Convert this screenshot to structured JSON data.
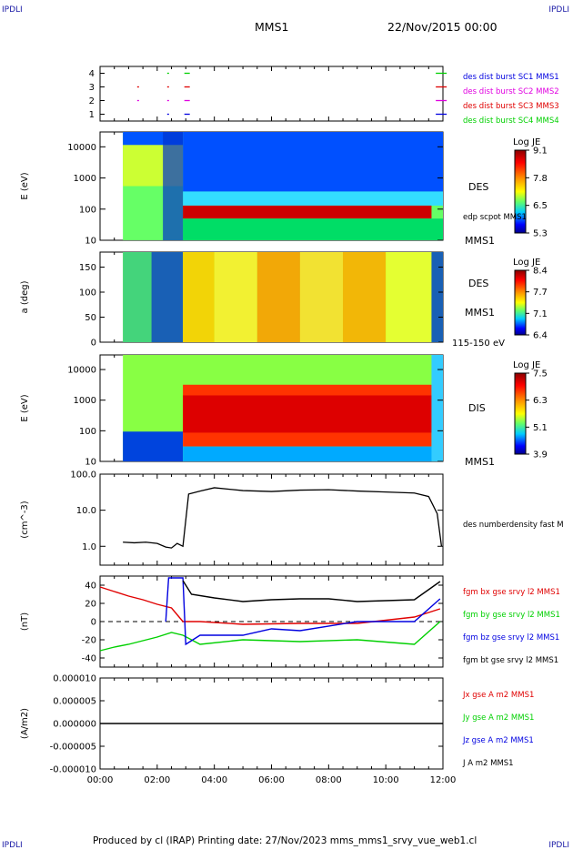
{
  "header": {
    "corner_left": "IPDLI",
    "corner_right": "IPDLI",
    "mission": "MMS1",
    "date": "22/Nov/2015 00:00",
    "corner_bottom_left": "IPDLI",
    "corner_bottom_right": "IPDLI"
  },
  "footer": {
    "text": "Produced by cl (IRAP)   Printing date: 27/Nov/2023   mms_mms1_srvy_vue_web1.cl"
  },
  "x_axis": {
    "ticks": [
      "00:00",
      "02:00",
      "04:00",
      "06:00",
      "08:00",
      "10:00",
      "12:00"
    ],
    "range_hours": [
      0,
      12
    ]
  },
  "colors": {
    "red": "#e00000",
    "green": "#00d000",
    "blue": "#0000e0",
    "magenta": "#e000e0",
    "black": "#000000"
  },
  "chart_data": [
    {
      "type": "scatter",
      "panel": "burst",
      "yticks": [
        "1",
        "2",
        "3",
        "4"
      ],
      "legend": [
        {
          "label": "des dist burst SC1 MMS1",
          "color": "#0000e0"
        },
        {
          "label": "des dist burst SC2 MMS2",
          "color": "#e000e0"
        },
        {
          "label": "des dist burst SC3 MMS3",
          "color": "#e00000"
        },
        {
          "label": "des dist burst SC4 MMS4",
          "color": "#00d000"
        }
      ],
      "series": [
        {
          "level": 1,
          "x": [
            2.35,
            2.95,
            11.75
          ]
        },
        {
          "level": 2,
          "x": [
            1.3,
            2.35,
            2.95,
            11.75
          ]
        },
        {
          "level": 3,
          "x": [
            1.3,
            2.35,
            2.95,
            11.75
          ]
        },
        {
          "level": 4,
          "x": [
            2.35,
            2.95,
            11.75
          ]
        }
      ]
    },
    {
      "type": "heatmap",
      "panel": "des-energy",
      "ylabel": "E (eV)",
      "yticks": [
        "10",
        "100",
        "1000",
        "10000"
      ],
      "colorbar": {
        "title": "Log JE",
        "ticks": [
          "9.1",
          "7.8",
          "6.5",
          "5.3"
        ]
      },
      "labels": [
        "DES",
        "MMS1"
      ],
      "overlay_label": "edp scpot MMS1"
    },
    {
      "type": "heatmap",
      "panel": "des-pitch",
      "ylabel": "a (deg)",
      "yticks": [
        "0",
        "50",
        "100",
        "150"
      ],
      "colorbar": {
        "title": "Log JE",
        "ticks": [
          "8.4",
          "7.7",
          "7.1",
          "6.4"
        ]
      },
      "labels": [
        "DES",
        "MMS1",
        "115-150 eV"
      ]
    },
    {
      "type": "heatmap",
      "panel": "dis-energy",
      "ylabel": "E (eV)",
      "yticks": [
        "10",
        "100",
        "1000",
        "10000"
      ],
      "colorbar": {
        "title": "Log JE",
        "ticks": [
          "7.5",
          "6.3",
          "5.1",
          "3.9"
        ]
      },
      "labels": [
        "DIS",
        "MMS1"
      ]
    },
    {
      "type": "line",
      "panel": "density",
      "ylabel": "(cm^-3)",
      "yticks": [
        "1.0",
        "10.0",
        "100.0"
      ],
      "ylim": [
        0.3,
        100
      ],
      "legend": [
        {
          "label": "des numberdensity fast M",
          "color": "#000000"
        }
      ],
      "series": [
        {
          "name": "des numberdensity fast M",
          "x": [
            0.8,
            1.2,
            1.6,
            2.0,
            2.3,
            2.5,
            2.7,
            2.9,
            3.1,
            3.5,
            4.0,
            5.0,
            6.0,
            7.0,
            8.0,
            9.0,
            10.0,
            11.0,
            11.5,
            11.8,
            11.95
          ],
          "y": [
            1.3,
            1.25,
            1.3,
            1.2,
            0.95,
            0.9,
            1.2,
            1.0,
            28,
            34,
            42,
            35,
            33,
            36,
            37,
            34,
            32,
            30,
            24,
            8,
            1.0
          ]
        }
      ]
    },
    {
      "type": "line",
      "panel": "magnetic",
      "ylabel": "(nT)",
      "yticks": [
        "-40",
        "-20",
        "0",
        "20",
        "40"
      ],
      "ylim": [
        -50,
        50
      ],
      "legend": [
        {
          "label": "fgm bx gse srvy l2 MMS1",
          "color": "#e00000"
        },
        {
          "label": "fgm by gse srvy l2 MMS1",
          "color": "#00d000"
        },
        {
          "label": "fgm bz gse srvy l2 MMS1",
          "color": "#0000e0"
        },
        {
          "label": "fgm bt gse srvy l2 MMS1",
          "color": "#000000"
        }
      ],
      "series": [
        {
          "name": "fgm bx gse srvy l2 MMS1",
          "x": [
            0.0,
            0.5,
            1.0,
            1.5,
            2.0,
            2.5,
            2.9,
            3.5,
            5.0,
            7.0,
            9.0,
            11.0,
            11.9
          ],
          "y": [
            38,
            33,
            28,
            24,
            19,
            15,
            0,
            0,
            -3,
            -2,
            -2,
            5,
            14
          ]
        },
        {
          "name": "fgm by gse srvy l2 MMS1",
          "x": [
            0.0,
            0.5,
            1.0,
            1.5,
            2.0,
            2.5,
            2.9,
            3.5,
            5.0,
            7.0,
            9.0,
            11.0,
            11.9
          ],
          "y": [
            -32,
            -28,
            -25,
            -21,
            -17,
            -12,
            -15,
            -25,
            -20,
            -22,
            -20,
            -25,
            0
          ]
        },
        {
          "name": "fgm bz gse srvy l2 MMS1",
          "x": [
            2.3,
            2.4,
            2.9,
            3.0,
            3.5,
            5.0,
            6.0,
            7.0,
            9.0,
            11.0,
            11.9
          ],
          "y": [
            0,
            48,
            48,
            -25,
            -15,
            -15,
            -8,
            -10,
            0,
            0,
            25
          ]
        },
        {
          "name": "fgm bt gse srvy l2 MMS1",
          "x": [
            2.9,
            3.2,
            4.0,
            5.0,
            6.0,
            7.0,
            8.0,
            9.0,
            10.0,
            11.0,
            11.9
          ],
          "y": [
            45,
            30,
            26,
            22,
            24,
            25,
            25,
            22,
            23,
            24,
            44
          ]
        }
      ]
    },
    {
      "type": "line",
      "panel": "current",
      "ylabel": "(A/m2)",
      "yticks": [
        "0.000010",
        "0.000005",
        "0.000000",
        "-0.000005",
        "-0.000010"
      ],
      "ylim": [
        -1e-05,
        1e-05
      ],
      "legend": [
        {
          "label": "Jx gse A m2 MMS1",
          "color": "#e00000"
        },
        {
          "label": "Jy gse A m2 MMS1",
          "color": "#00d000"
        },
        {
          "label": "Jz gse A m2 MMS1",
          "color": "#0000e0"
        },
        {
          "label": "J A m2 MMS1",
          "color": "#000000"
        }
      ],
      "series": [
        {
          "name": "J A m2 MMS1",
          "x": [
            0,
            12
          ],
          "y": [
            0,
            0
          ]
        }
      ]
    }
  ]
}
